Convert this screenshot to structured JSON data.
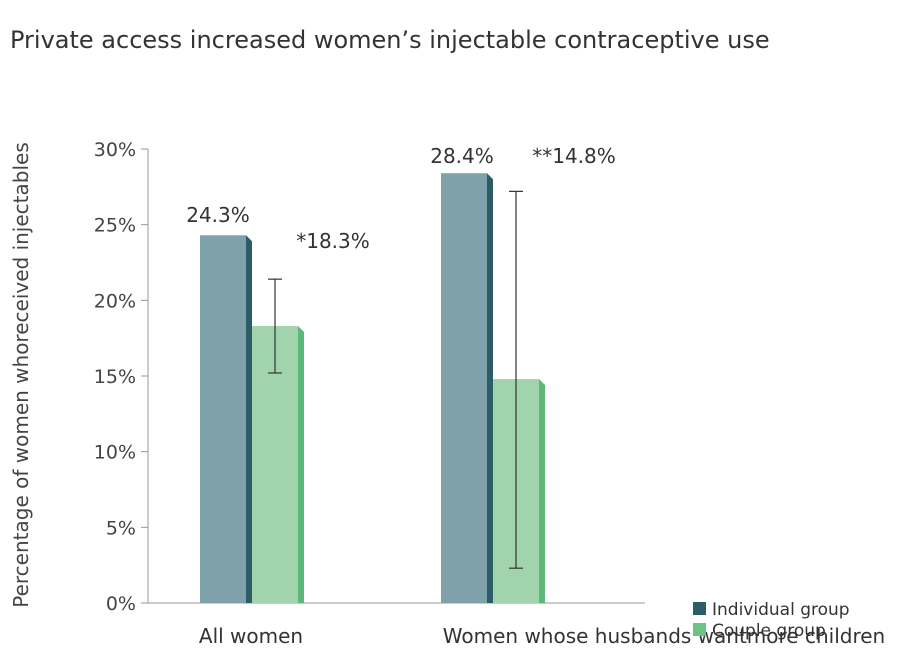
{
  "chart_data": {
    "type": "bar",
    "title": "Private access increased women’s injectable contraceptive use",
    "ylabel": "Percentage of women  whoreceived injectables",
    "xlabel": "",
    "categories": [
      "All women",
      "Women whose husbands wantmore children"
    ],
    "series": [
      {
        "name": "Individual group",
        "values": [
          24.3,
          28.4
        ],
        "labels": [
          "24.3%",
          "28.4%"
        ],
        "color": "#7fa2aa",
        "edge_color": "#2c5d66"
      },
      {
        "name": "Couple group",
        "values": [
          18.3,
          14.8
        ],
        "labels": [
          "*18.3%",
          "**14.8%"
        ],
        "color": "#a1d4ac",
        "edge_color": "#5cb877",
        "error_bars": [
          [
            15.2,
            21.4
          ],
          [
            2.3,
            27.2
          ]
        ]
      }
    ],
    "ylim": [
      0,
      30
    ],
    "yticks": [
      0,
      5,
      10,
      15,
      20,
      25,
      30
    ],
    "ytick_labels": [
      "0%",
      "5%",
      "10%",
      "15%",
      "20%",
      "25%",
      "30%"
    ],
    "legend_position": "bottom-right",
    "grid": false
  }
}
